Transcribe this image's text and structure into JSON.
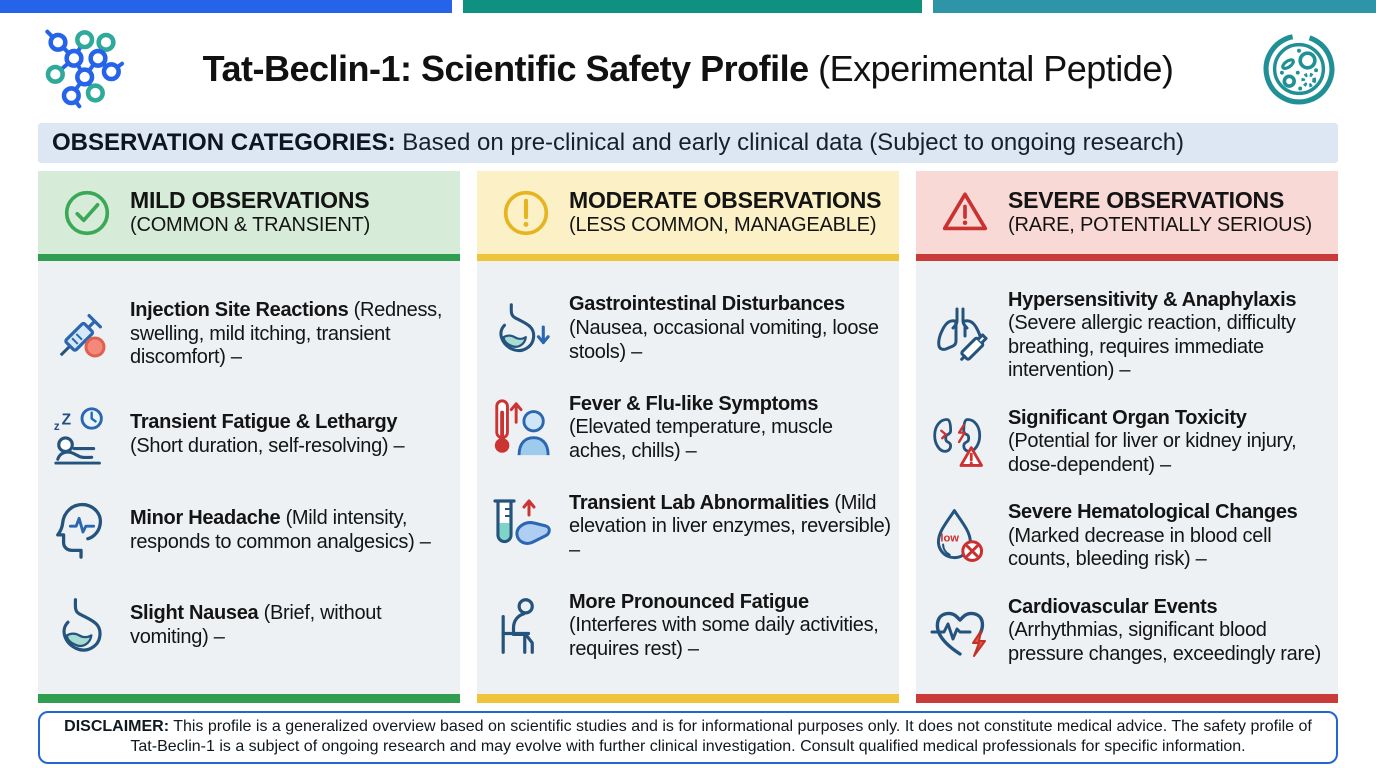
{
  "top_bar": {
    "segment_colors": [
      "#2563eb",
      "#0e9180",
      "#2e95a8"
    ]
  },
  "header": {
    "title_bold": "Tat-Beclin-1: Scientific Safety Profile",
    "title_light": "(Experimental Peptide)",
    "left_icon": "molecule-icon",
    "right_icon": "petri-dish-icon"
  },
  "banner": {
    "label": "OBSERVATION CATEGORIES:",
    "text": "Based on pre-clinical and early clinical data (Subject to ongoing research)",
    "bg": "#dce7f3"
  },
  "columns": [
    {
      "id": "mild",
      "icon": "check-circle-icon",
      "title": "MILD OBSERVATIONS",
      "subtitle": "(COMMON & TRANSIENT)",
      "accent": "#2f9e50",
      "header_bg": "#d7ecd8",
      "items": [
        {
          "icon": "syringe-icon",
          "title": "Injection Site Reactions",
          "desc": "(Redness, swelling, mild itching, transient discomfort) –"
        },
        {
          "icon": "sleep-fatigue-icon",
          "title": "Transient Fatigue & Lethargy",
          "desc": "(Short duration, self-resolving) –"
        },
        {
          "icon": "headache-icon",
          "title": "Minor Headache",
          "desc": "(Mild intensity, responds to common analgesics) –"
        },
        {
          "icon": "stomach-icon",
          "title": "Slight Nausea",
          "desc": "(Brief, without vomiting) –"
        }
      ]
    },
    {
      "id": "moderate",
      "icon": "alert-circle-icon",
      "title": "MODERATE OBSERVATIONS",
      "subtitle": "(LESS COMMON, MANAGEABLE)",
      "accent": "#eec43b",
      "header_bg": "#fbf0c6",
      "items": [
        {
          "icon": "stomach-down-icon",
          "title": "Gastrointestinal Disturbances",
          "desc": "(Nausea, occasional vomiting, loose stools) –"
        },
        {
          "icon": "fever-icon",
          "title": "Fever & Flu-like Symptoms",
          "desc": "(Elevated temperature, muscle aches, chills) –"
        },
        {
          "icon": "lab-tube-liver-icon",
          "title": "Transient Lab Abnormalities",
          "desc": "(Mild elevation in liver enzymes, reversible) –"
        },
        {
          "icon": "seated-fatigue-icon",
          "title": "More Pronounced Fatigue",
          "desc": "(Interferes with some daily activities, requires rest) –"
        }
      ]
    },
    {
      "id": "severe",
      "icon": "warning-triangle-icon",
      "title": "SEVERE OBSERVATIONS",
      "subtitle": "(RARE, POTENTIALLY SERIOUS)",
      "accent": "#c93a38",
      "header_bg": "#f9d9d6",
      "items": [
        {
          "icon": "lungs-injector-icon",
          "title": "Hypersensitivity & Anaphylaxis",
          "desc": "(Severe allergic reaction, difficulty breathing, requires immediate intervention) –"
        },
        {
          "icon": "kidneys-warning-icon",
          "title": "Significant Organ Toxicity",
          "desc": "(Potential for liver or kidney injury, dose-dependent) –"
        },
        {
          "icon": "blood-drop-low-icon",
          "title": "Severe Hematological Changes",
          "desc": "(Marked decrease in blood cell counts, bleeding risk) –"
        },
        {
          "icon": "heart-ecg-icon",
          "title": "Cardiovascular Events",
          "desc": "(Arrhythmias, significant blood pressure changes, exceedingly rare)"
        }
      ]
    }
  ],
  "disclaimer": {
    "label": "DISCLAIMER:",
    "text": "This profile is a generalized overview based on scientific studies and is for informational purposes only. It does not constitute medical advice. The safety profile of Tat-Beclin-1 is a subject of ongoing research and may evolve with further clinical investigation. Consult qualified medical professionals for specific information.",
    "border_color": "#2166d1"
  }
}
